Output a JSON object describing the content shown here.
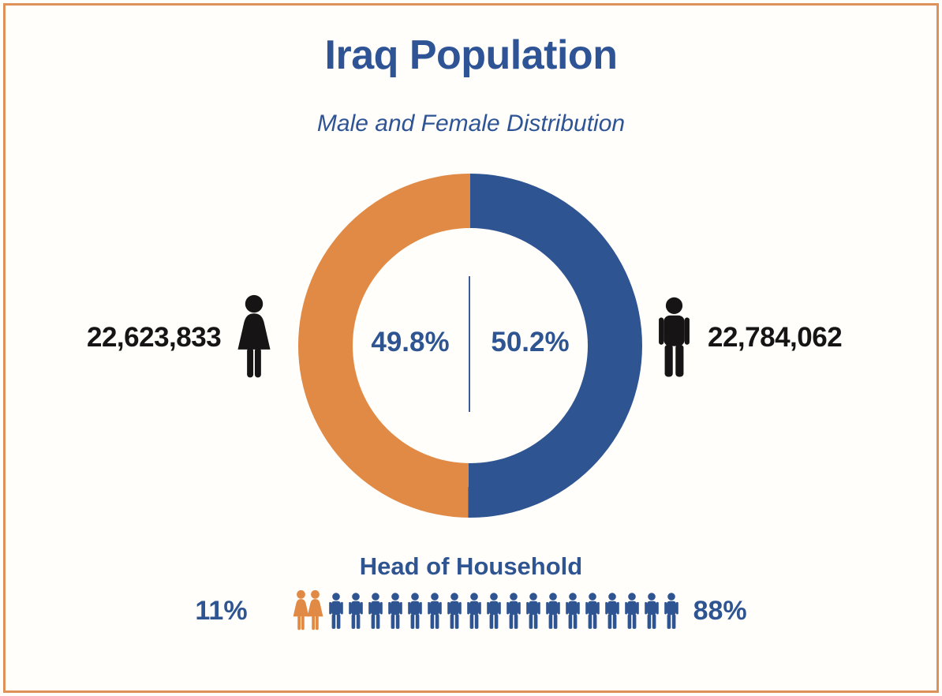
{
  "page": {
    "background": "#FFFEFA",
    "border_color": "#DE925A",
    "accent_blue": "#2E5492",
    "accent_orange": "#E08A45",
    "icon_black": "#161414"
  },
  "header": {
    "title": "Iraq Population",
    "subtitle": "Male and Female Distribution"
  },
  "chart_data": [
    {
      "type": "pie",
      "donut": true,
      "title": "Iraq Population — Male and Female Distribution",
      "labels": [
        "Female",
        "Male"
      ],
      "values": [
        49.8,
        50.2
      ],
      "counts": [
        22623833,
        22784062
      ],
      "count_labels": [
        "22,623,833",
        "22,784,062"
      ],
      "annotations": [
        "49.8%",
        "50.2%"
      ],
      "colors": [
        "#E08A45",
        "#2E5492"
      ],
      "legend_position": "none",
      "layout_hint": "female (orange) left half, male (blue) right half, split at 12 o'clock, center divider line"
    },
    {
      "type": "pie",
      "style_hint": "pictogram-row",
      "title": "Head of Household",
      "labels": [
        "Female-headed",
        "Male-headed"
      ],
      "values": [
        11,
        88
      ],
      "value_labels": [
        "11%",
        "88%"
      ],
      "icon_counts": [
        2,
        18
      ],
      "colors": [
        "#E08A45",
        "#2E5492"
      ],
      "layout_hint": "2 orange female figures then 18 blue male figures in a row, 11% at left, 88% at right"
    }
  ]
}
